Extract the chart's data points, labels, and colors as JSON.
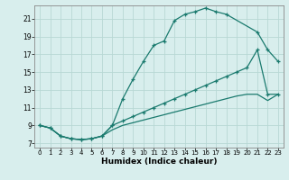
{
  "xlabel": "Humidex (Indice chaleur)",
  "bg_color": "#d8eeed",
  "grid_color": "#b8d8d5",
  "line_color": "#1a7a6e",
  "xlim": [
    -0.5,
    23.5
  ],
  "ylim": [
    6.5,
    22.5
  ],
  "xticks": [
    0,
    1,
    2,
    3,
    4,
    5,
    6,
    7,
    8,
    9,
    10,
    11,
    12,
    13,
    14,
    15,
    16,
    17,
    18,
    19,
    20,
    21,
    22,
    23
  ],
  "yticks": [
    7,
    9,
    11,
    13,
    15,
    17,
    19,
    21
  ],
  "curve1_x": [
    0,
    1,
    2,
    3,
    4,
    5,
    6,
    7,
    8,
    9,
    10,
    11,
    12,
    13,
    14,
    15,
    16,
    17,
    18,
    21,
    22,
    23
  ],
  "curve1_y": [
    9.0,
    8.7,
    7.8,
    7.5,
    7.4,
    7.5,
    7.8,
    9.0,
    12.0,
    14.2,
    16.2,
    18.0,
    18.5,
    20.8,
    21.5,
    21.8,
    22.2,
    21.8,
    21.5,
    19.5,
    17.5,
    16.2
  ],
  "curve2_x": [
    0,
    1,
    2,
    3,
    4,
    5,
    6,
    7,
    8,
    9,
    10,
    11,
    12,
    13,
    14,
    15,
    16,
    17,
    18,
    19,
    20,
    21,
    22,
    23
  ],
  "curve2_y": [
    9.0,
    8.7,
    7.8,
    7.5,
    7.4,
    7.5,
    7.8,
    9.0,
    9.5,
    10.0,
    10.5,
    11.0,
    11.5,
    12.0,
    12.5,
    13.0,
    13.5,
    14.0,
    14.5,
    15.0,
    15.5,
    17.5,
    12.5,
    12.5
  ],
  "curve3_x": [
    0,
    1,
    2,
    3,
    4,
    5,
    6,
    7,
    8,
    9,
    10,
    11,
    12,
    13,
    14,
    15,
    16,
    17,
    18,
    19,
    20,
    21,
    22,
    23
  ],
  "curve3_y": [
    9.0,
    8.7,
    7.8,
    7.5,
    7.4,
    7.5,
    7.8,
    8.5,
    9.0,
    9.3,
    9.6,
    9.9,
    10.2,
    10.5,
    10.8,
    11.1,
    11.4,
    11.7,
    12.0,
    12.3,
    12.5,
    12.5,
    11.8,
    12.5
  ]
}
